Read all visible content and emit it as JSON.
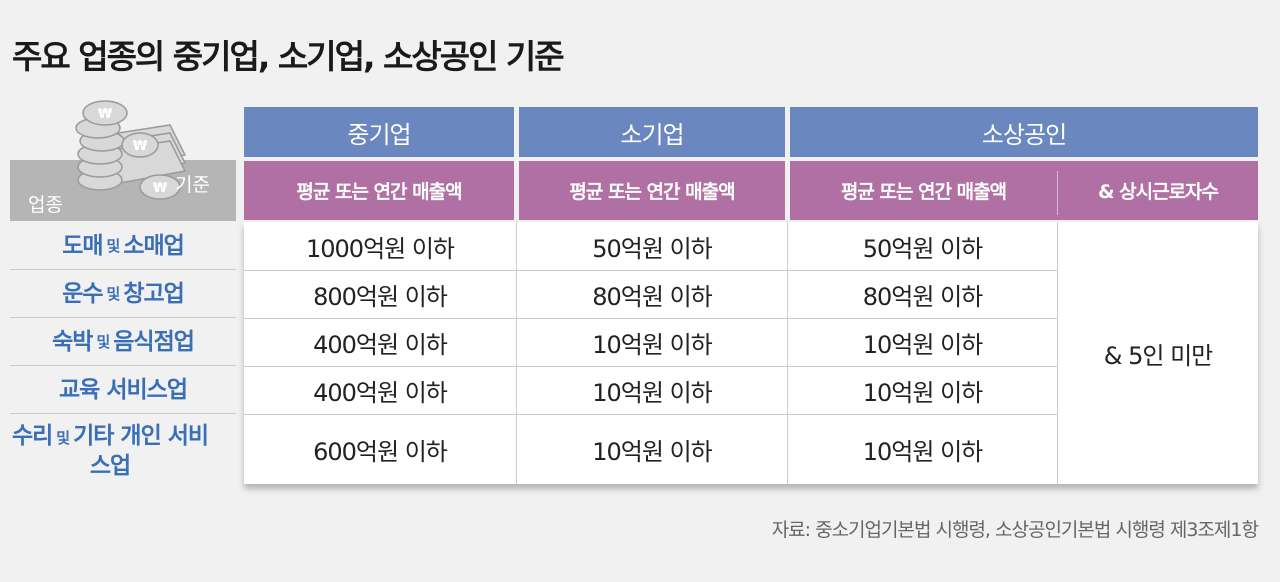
{
  "title": "주요 업종의 중기업, 소기업, 소상공인 기준",
  "corner": {
    "row_label": "업종",
    "col_label": "기준",
    "icon": "coins-and-banknotes-icon"
  },
  "groups": [
    "중기업",
    "소기업",
    "소상공인"
  ],
  "subheaders": [
    "평균 또는 연간 매출액",
    "평균 또는 연간 매출액",
    "평균 또는 연간 매출액",
    "& 상시근로자수"
  ],
  "rows": [
    {
      "label_a": "도매",
      "conj": "및",
      "label_b": "소매업",
      "mid": "1000억원 이하",
      "small": "50억원 이하",
      "micro": "50억원 이하"
    },
    {
      "label_a": "운수",
      "conj": "및",
      "label_b": "창고업",
      "mid": "800억원 이하",
      "small": "80억원 이하",
      "micro": "80억원 이하"
    },
    {
      "label_a": "숙박",
      "conj": "및",
      "label_b": "음식점업",
      "mid": "400억원 이하",
      "small": "10억원 이하",
      "micro": "10억원 이하"
    },
    {
      "label_a": "교육 서비스업",
      "conj": "",
      "label_b": "",
      "mid": "400억원 이하",
      "small": "10억원 이하",
      "micro": "10억원 이하"
    },
    {
      "label_a": "수리",
      "conj": "및",
      "label_b": "기타 개인 서비스업",
      "mid": "600억원 이하",
      "small": "10억원 이하",
      "micro": "10억원 이하"
    }
  ],
  "employees": "& 5인 미만",
  "source": "자료: 중소기업기본법 시행령, 소상공인기본법 시행령 제3조제1항",
  "colors": {
    "group_header": "#6a87bf",
    "sub_header": "#b070a3",
    "row_label": "#3a6fb5"
  }
}
